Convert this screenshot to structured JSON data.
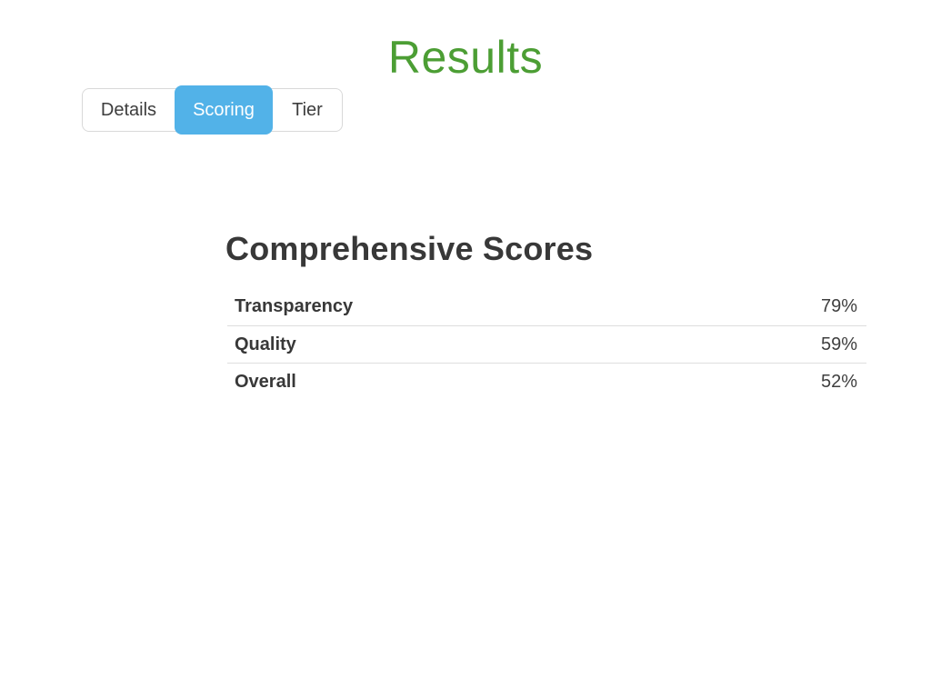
{
  "page": {
    "title": "Results",
    "title_color": "#4c9e34",
    "background_color": "#ffffff"
  },
  "tabs": {
    "items": [
      {
        "label": "Details",
        "selected": false
      },
      {
        "label": "Scoring",
        "selected": true
      },
      {
        "label": "Tier",
        "selected": false
      }
    ],
    "selected_background_color": "#52b2e8",
    "selected_text_color": "#ffffff",
    "unselected_text_color": "#3d3d3d",
    "border_color": "#d9d9d9"
  },
  "scores_section": {
    "heading": "Comprehensive Scores",
    "rows": [
      {
        "label": "Transparency",
        "value": "79%"
      },
      {
        "label": "Quality",
        "value": "59%"
      },
      {
        "label": "Overall",
        "value": "52%"
      }
    ],
    "separator_color": "#dedede"
  }
}
